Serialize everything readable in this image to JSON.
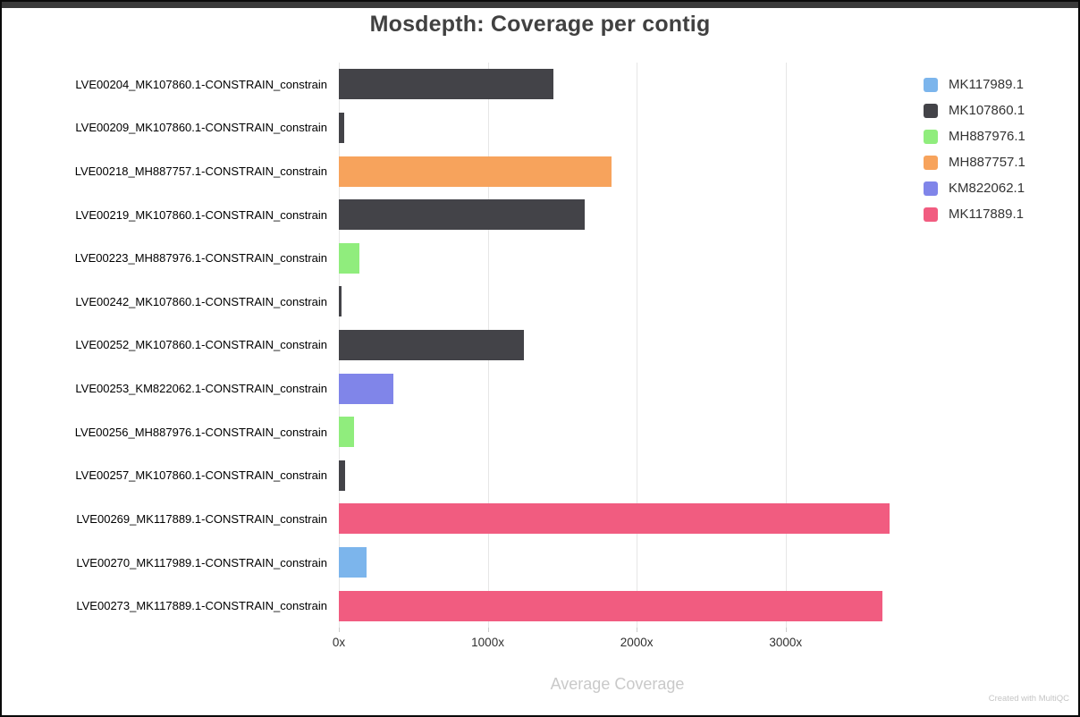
{
  "window": {
    "watermark": "Created with MultiQC"
  },
  "chart_data": {
    "type": "bar",
    "orientation": "horizontal",
    "title": "Mosdepth: Coverage per contig",
    "xlabel": "Average Coverage",
    "xlim": [
      0,
      3740
    ],
    "grid": true,
    "legend_position": "top-right",
    "unit_suffix": "x",
    "x_ticks": [
      {
        "label": "0x",
        "value": 0
      },
      {
        "label": "1000x",
        "value": 1000
      },
      {
        "label": "2000x",
        "value": 2000
      },
      {
        "label": "3000x",
        "value": 3000
      }
    ],
    "legend": [
      {
        "label": "MK117989.1",
        "color": "#7cb5ec"
      },
      {
        "label": "MK107860.1",
        "color": "#434348"
      },
      {
        "label": "MH887976.1",
        "color": "#90ed7d"
      },
      {
        "label": "MH887757.1",
        "color": "#f7a35c"
      },
      {
        "label": "KM822062.1",
        "color": "#8085e9"
      },
      {
        "label": "MK117889.1",
        "color": "#f15c80"
      }
    ],
    "rows": [
      {
        "label": "LVE00204_MK107860.1-CONSTRAIN_constrain",
        "contig": "MK107860.1",
        "value": 1440
      },
      {
        "label": "LVE00209_MK107860.1-CONSTRAIN_constrain",
        "contig": "MK107860.1",
        "value": 35
      },
      {
        "label": "LVE00218_MH887757.1-CONSTRAIN_constrain",
        "contig": "MH887757.1",
        "value": 1830
      },
      {
        "label": "LVE00219_MK107860.1-CONSTRAIN_constrain",
        "contig": "MK107860.1",
        "value": 1650
      },
      {
        "label": "LVE00223_MH887976.1-CONSTRAIN_constrain",
        "contig": "MH887976.1",
        "value": 140
      },
      {
        "label": "LVE00242_MK107860.1-CONSTRAIN_constrain",
        "contig": "MK107860.1",
        "value": 18
      },
      {
        "label": "LVE00252_MK107860.1-CONSTRAIN_constrain",
        "contig": "MK107860.1",
        "value": 1240
      },
      {
        "label": "LVE00253_KM822062.1-CONSTRAIN_constrain",
        "contig": "KM822062.1",
        "value": 365
      },
      {
        "label": "LVE00256_MH887976.1-CONSTRAIN_constrain",
        "contig": "MH887976.1",
        "value": 105
      },
      {
        "label": "LVE00257_MK107860.1-CONSTRAIN_constrain",
        "contig": "MK107860.1",
        "value": 45
      },
      {
        "label": "LVE00269_MK117889.1-CONSTRAIN_constrain",
        "contig": "MK117889.1",
        "value": 3695
      },
      {
        "label": "LVE00270_MK117989.1-CONSTRAIN_constrain",
        "contig": "MK117989.1",
        "value": 185
      },
      {
        "label": "LVE00273_MK117889.1-CONSTRAIN_constrain",
        "contig": "MK117889.1",
        "value": 3650
      }
    ]
  }
}
